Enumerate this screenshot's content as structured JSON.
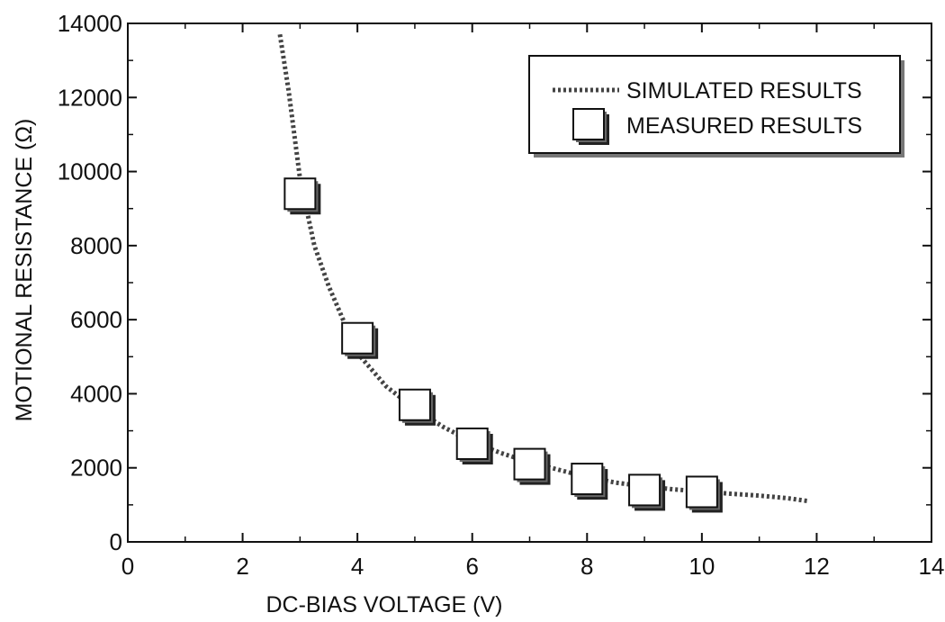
{
  "chart_data": {
    "type": "line",
    "xlabel": "DC-BIAS VOLTAGE (V)",
    "ylabel": "MOTIONAL RESISTANCE (Ω)",
    "xlim": [
      0,
      14
    ],
    "ylim": [
      0,
      14000
    ],
    "x_ticks": [
      "0",
      "2",
      "4",
      "6",
      "8",
      "10",
      "12",
      "14"
    ],
    "y_ticks": [
      "0",
      "2000",
      "4000",
      "6000",
      "8000",
      "10000",
      "12000",
      "14000"
    ],
    "grid": false,
    "legend_position": "top-right",
    "series": [
      {
        "name": "SIMULATED RESULTS",
        "style": "dotted-line",
        "x": [
          2.65,
          2.8,
          3.0,
          3.25,
          3.5,
          3.75,
          4.0,
          4.5,
          5.0,
          5.5,
          6.0,
          6.5,
          7.0,
          7.5,
          8.0,
          8.5,
          9.0,
          9.5,
          10.0,
          10.5,
          11.0,
          11.5,
          11.85
        ],
        "y": [
          13700,
          12200,
          9800,
          8000,
          6900,
          6000,
          5100,
          4200,
          3600,
          3100,
          2700,
          2400,
          2150,
          1950,
          1750,
          1600,
          1500,
          1420,
          1360,
          1300,
          1250,
          1180,
          1100
        ]
      },
      {
        "name": "MEASURED RESULTS",
        "style": "square-markers",
        "x": [
          3,
          4,
          5,
          6,
          7,
          8,
          9,
          10
        ],
        "y": [
          9400,
          5500,
          3700,
          2650,
          2100,
          1700,
          1400,
          1350
        ]
      }
    ]
  }
}
